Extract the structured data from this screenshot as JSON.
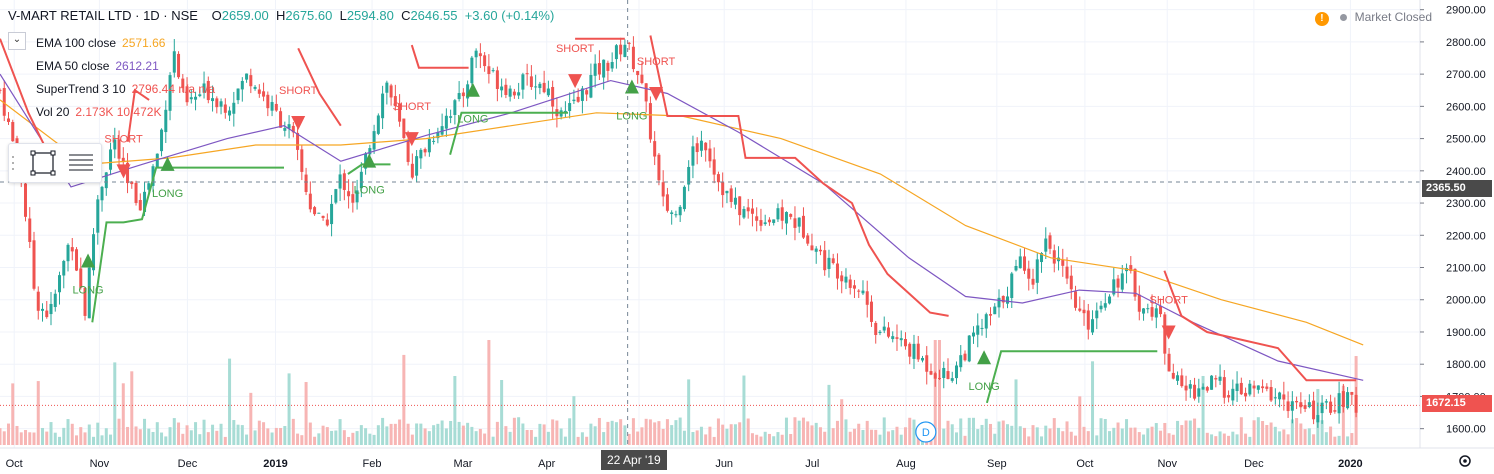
{
  "header": {
    "title": "V-MART RETAIL LTD · 1D · NSE",
    "open_label": "O",
    "open": "2659.00",
    "high_label": "H",
    "high": "2675.60",
    "low_label": "L",
    "low": "2594.80",
    "close_label": "C",
    "close": "2646.55",
    "change": "+3.60 (+0.14%)"
  },
  "market_status": {
    "icon": "warning-icon",
    "text": "Market Closed"
  },
  "legend": [
    {
      "name": "EMA 100 close",
      "value": "2571.66",
      "color": "#f6a623"
    },
    {
      "name": "EMA 50 close",
      "value": "2612.21",
      "color": "#7e57c2"
    },
    {
      "name": "SuperTrend 3 10",
      "value": "2796.44  n/a  n/a",
      "color": "#ef5350"
    },
    {
      "name": "Vol 20",
      "value": "2.173K  10.472K",
      "color": "#ef5350"
    }
  ],
  "crosshair": {
    "price_label": "2365.50",
    "date_label": "22 Apr '19"
  },
  "last_price_label": "1672.15",
  "last_price_partial": "1700.00",
  "dividend_marker": "D",
  "chart_data": {
    "type": "candlestick",
    "ylim": [
      1540,
      2930
    ],
    "yticks": [
      1600,
      1700,
      1800,
      1900,
      2000,
      2100,
      2200,
      2300,
      2400,
      2500,
      2600,
      2700,
      2800,
      2900
    ],
    "xticks": [
      {
        "label": "Oct",
        "t": 0.01
      },
      {
        "label": "Nov",
        "t": 0.07
      },
      {
        "label": "Dec",
        "t": 0.132
      },
      {
        "label": "2019",
        "t": 0.194
      },
      {
        "label": "Feb",
        "t": 0.262
      },
      {
        "label": "Mar",
        "t": 0.326
      },
      {
        "label": "Apr",
        "t": 0.385
      },
      {
        "label": "May",
        "t": 0.45
      },
      {
        "label": "Jun",
        "t": 0.51
      },
      {
        "label": "Jul",
        "t": 0.572
      },
      {
        "label": "Aug",
        "t": 0.638
      },
      {
        "label": "Sep",
        "t": 0.702
      },
      {
        "label": "Oct",
        "t": 0.764
      },
      {
        "label": "Nov",
        "t": 0.822
      },
      {
        "label": "Dec",
        "t": 0.883
      },
      {
        "label": "2020",
        "t": 0.951
      }
    ],
    "close_path": [
      [
        0.0,
        2650
      ],
      [
        0.015,
        2380
      ],
      [
        0.025,
        2000
      ],
      [
        0.035,
        1950
      ],
      [
        0.05,
        2200
      ],
      [
        0.06,
        1960
      ],
      [
        0.068,
        2300
      ],
      [
        0.08,
        2500
      ],
      [
        0.09,
        2350
      ],
      [
        0.1,
        2300
      ],
      [
        0.112,
        2470
      ],
      [
        0.122,
        2780
      ],
      [
        0.13,
        2600
      ],
      [
        0.145,
        2650
      ],
      [
        0.16,
        2600
      ],
      [
        0.175,
        2700
      ],
      [
        0.19,
        2600
      ],
      [
        0.205,
        2520
      ],
      [
        0.218,
        2300
      ],
      [
        0.228,
        2220
      ],
      [
        0.24,
        2380
      ],
      [
        0.25,
        2300
      ],
      [
        0.262,
        2520
      ],
      [
        0.272,
        2680
      ],
      [
        0.28,
        2560
      ],
      [
        0.29,
        2400
      ],
      [
        0.3,
        2480
      ],
      [
        0.315,
        2580
      ],
      [
        0.325,
        2620
      ],
      [
        0.335,
        2780
      ],
      [
        0.345,
        2700
      ],
      [
        0.36,
        2650
      ],
      [
        0.372,
        2680
      ],
      [
        0.385,
        2660
      ],
      [
        0.395,
        2570
      ],
      [
        0.405,
        2600
      ],
      [
        0.418,
        2700
      ],
      [
        0.43,
        2740
      ],
      [
        0.44,
        2800
      ],
      [
        0.45,
        2700
      ],
      [
        0.458,
        2520
      ],
      [
        0.466,
        2300
      ],
      [
        0.476,
        2260
      ],
      [
        0.486,
        2450
      ],
      [
        0.496,
        2500
      ],
      [
        0.505,
        2380
      ],
      [
        0.515,
        2300
      ],
      [
        0.525,
        2270
      ],
      [
        0.54,
        2250
      ],
      [
        0.555,
        2260
      ],
      [
        0.568,
        2210
      ],
      [
        0.58,
        2120
      ],
      [
        0.595,
        2080
      ],
      [
        0.608,
        2020
      ],
      [
        0.618,
        1900
      ],
      [
        0.63,
        1880
      ],
      [
        0.642,
        1840
      ],
      [
        0.655,
        1790
      ],
      [
        0.668,
        1760
      ],
      [
        0.678,
        1830
      ],
      [
        0.69,
        1910
      ],
      [
        0.702,
        1970
      ],
      [
        0.712,
        2060
      ],
      [
        0.72,
        2130
      ],
      [
        0.728,
        2060
      ],
      [
        0.735,
        2200
      ],
      [
        0.745,
        2120
      ],
      [
        0.755,
        2000
      ],
      [
        0.765,
        1920
      ],
      [
        0.775,
        1990
      ],
      [
        0.785,
        2060
      ],
      [
        0.795,
        2080
      ],
      [
        0.805,
        1960
      ],
      [
        0.815,
        1980
      ],
      [
        0.822,
        1820
      ],
      [
        0.83,
        1730
      ],
      [
        0.84,
        1720
      ],
      [
        0.855,
        1740
      ],
      [
        0.87,
        1710
      ],
      [
        0.885,
        1720
      ],
      [
        0.9,
        1700
      ],
      [
        0.915,
        1660
      ],
      [
        0.93,
        1650
      ],
      [
        0.94,
        1680
      ],
      [
        0.948,
        1690
      ],
      [
        0.955,
        1672
      ]
    ],
    "series": [
      {
        "name": "EMA 100 close",
        "color": "#f6a623",
        "values": [
          [
            0.0,
            2620
          ],
          [
            0.06,
            2420
          ],
          [
            0.12,
            2440
          ],
          [
            0.18,
            2480
          ],
          [
            0.24,
            2480
          ],
          [
            0.3,
            2500
          ],
          [
            0.36,
            2540
          ],
          [
            0.42,
            2580
          ],
          [
            0.48,
            2570
          ],
          [
            0.55,
            2500
          ],
          [
            0.62,
            2390
          ],
          [
            0.68,
            2230
          ],
          [
            0.74,
            2130
          ],
          [
            0.8,
            2090
          ],
          [
            0.86,
            2000
          ],
          [
            0.92,
            1930
          ],
          [
            0.96,
            1860
          ]
        ]
      },
      {
        "name": "EMA 50 close",
        "color": "#7e57c2",
        "values": [
          [
            0.0,
            2700
          ],
          [
            0.05,
            2350
          ],
          [
            0.1,
            2420
          ],
          [
            0.16,
            2500
          ],
          [
            0.2,
            2540
          ],
          [
            0.24,
            2430
          ],
          [
            0.3,
            2510
          ],
          [
            0.36,
            2580
          ],
          [
            0.43,
            2680
          ],
          [
            0.47,
            2640
          ],
          [
            0.52,
            2520
          ],
          [
            0.58,
            2360
          ],
          [
            0.64,
            2130
          ],
          [
            0.68,
            2010
          ],
          [
            0.72,
            1990
          ],
          [
            0.76,
            2030
          ],
          [
            0.8,
            2020
          ],
          [
            0.84,
            1930
          ],
          [
            0.9,
            1810
          ],
          [
            0.96,
            1750
          ]
        ]
      },
      {
        "name": "SuperTrend up",
        "color": "#4caf50",
        "values": [
          [
            0.065,
            1930
          ],
          [
            0.075,
            2240
          ],
          [
            0.087,
            2240
          ],
          [
            0.1,
            2250
          ],
          [
            0.11,
            2410
          ],
          [
            0.2,
            2410
          ],
          null,
          [
            0.245,
            2390
          ],
          [
            0.255,
            2420
          ],
          [
            0.275,
            2420
          ],
          null,
          [
            0.317,
            2450
          ],
          [
            0.325,
            2580
          ],
          [
            0.4,
            2580
          ],
          null,
          [
            0.695,
            1680
          ],
          [
            0.705,
            1840
          ],
          [
            0.805,
            1840
          ],
          [
            0.815,
            1840
          ]
        ]
      },
      {
        "name": "SuperTrend down",
        "color": "#ef5350",
        "values": [
          [
            0.0,
            2810
          ],
          [
            0.02,
            2580
          ],
          [
            0.04,
            2400
          ],
          [
            0.055,
            2380
          ],
          null,
          [
            0.09,
            2490
          ],
          [
            0.095,
            2650
          ],
          [
            0.105,
            2620
          ],
          null,
          [
            0.21,
            2780
          ],
          [
            0.225,
            2640
          ],
          [
            0.24,
            2540
          ],
          null,
          [
            0.29,
            2790
          ],
          [
            0.295,
            2720
          ],
          [
            0.33,
            2720
          ],
          null,
          [
            0.405,
            2810
          ],
          [
            0.44,
            2810
          ],
          null,
          [
            0.458,
            2820
          ],
          [
            0.47,
            2570
          ],
          [
            0.52,
            2570
          ],
          [
            0.525,
            2440
          ],
          [
            0.56,
            2440
          ],
          [
            0.58,
            2360
          ],
          [
            0.6,
            2300
          ],
          [
            0.612,
            2170
          ],
          [
            0.625,
            2080
          ],
          [
            0.64,
            2020
          ],
          [
            0.655,
            1960
          ],
          [
            0.668,
            1950
          ],
          null,
          [
            0.82,
            2090
          ],
          [
            0.832,
            1950
          ],
          [
            0.85,
            1900
          ],
          [
            0.87,
            1880
          ],
          [
            0.9,
            1850
          ],
          [
            0.92,
            1750
          ],
          [
            0.955,
            1750
          ]
        ]
      }
    ],
    "signals": [
      {
        "type": "LONG",
        "t": 0.062,
        "price": 2100
      },
      {
        "type": "SHORT",
        "t": 0.087,
        "price": 2420
      },
      {
        "type": "LONG",
        "t": 0.118,
        "price": 2400
      },
      {
        "type": "SHORT",
        "t": 0.21,
        "price": 2570
      },
      {
        "type": "LONG",
        "t": 0.26,
        "price": 2410
      },
      {
        "type": "SHORT",
        "t": 0.29,
        "price": 2520
      },
      {
        "type": "LONG",
        "t": 0.333,
        "price": 2630
      },
      {
        "type": "SHORT",
        "t": 0.405,
        "price": 2700
      },
      {
        "type": "LONG",
        "t": 0.445,
        "price": 2640
      },
      {
        "type": "SHORT",
        "t": 0.462,
        "price": 2660
      },
      {
        "type": "LONG",
        "t": 0.693,
        "price": 1800
      },
      {
        "type": "SHORT",
        "t": 0.823,
        "price": 1920
      }
    ],
    "volume_note": "Vol 20 histogram"
  }
}
